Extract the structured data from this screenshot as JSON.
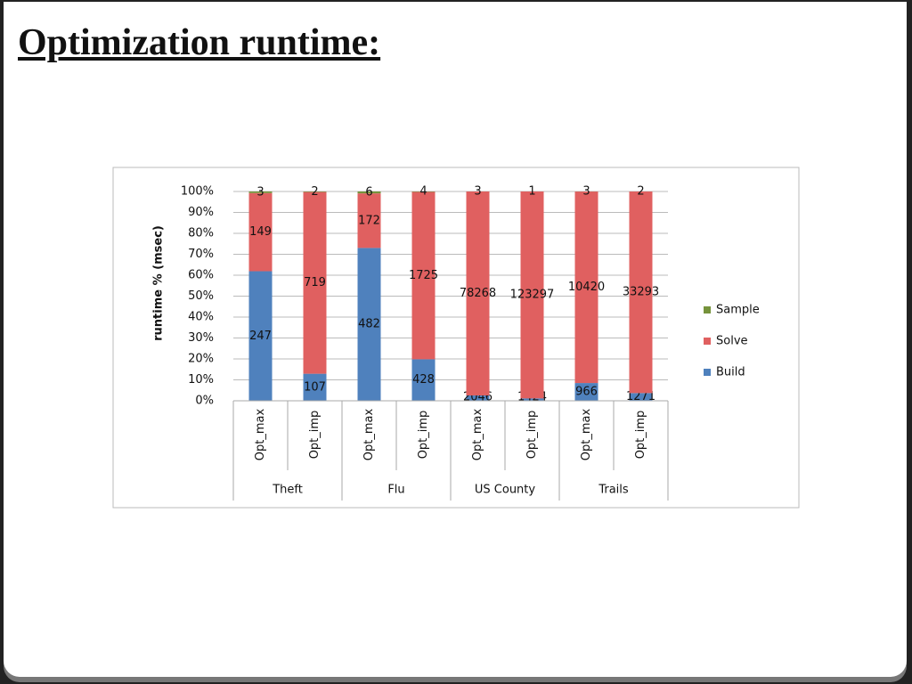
{
  "title": "Optimization runtime:",
  "chart_data": {
    "type": "stacked_percent_bar",
    "y_label": "runtime % (msec)",
    "groups": [
      "Theft",
      "Flu",
      "US County",
      "Trails"
    ],
    "categories": [
      "Opt_max",
      "Opt_imp",
      "Opt_max",
      "Opt_imp",
      "Opt_max",
      "Opt_imp",
      "Opt_max",
      "Opt_imp"
    ],
    "series": [
      {
        "name": "Build",
        "color": "#4f81bd",
        "values": [
          247,
          107,
          482,
          428,
          2046,
          1424,
          966,
          1271
        ]
      },
      {
        "name": "Solve",
        "color": "#e06060",
        "values": [
          149,
          719,
          172,
          1725,
          78268,
          123297,
          10420,
          33293
        ]
      },
      {
        "name": "Sample",
        "color": "#76933c",
        "values": [
          3,
          2,
          6,
          4,
          3,
          1,
          3,
          2
        ]
      }
    ],
    "ylim": [
      0,
      100
    ],
    "yticks": [
      {
        "value": 0,
        "label": "0%"
      },
      {
        "value": 10,
        "label": "10%"
      },
      {
        "value": 20,
        "label": "20%"
      },
      {
        "value": 30,
        "label": "30%"
      },
      {
        "value": 40,
        "label": "40%"
      },
      {
        "value": 50,
        "label": "50%"
      },
      {
        "value": 60,
        "label": "60%"
      },
      {
        "value": 70,
        "label": "70%"
      },
      {
        "value": 80,
        "label": "80%"
      },
      {
        "value": 90,
        "label": "90%"
      },
      {
        "value": 100,
        "label": "100%"
      }
    ],
    "grid": true,
    "legend": "right"
  }
}
